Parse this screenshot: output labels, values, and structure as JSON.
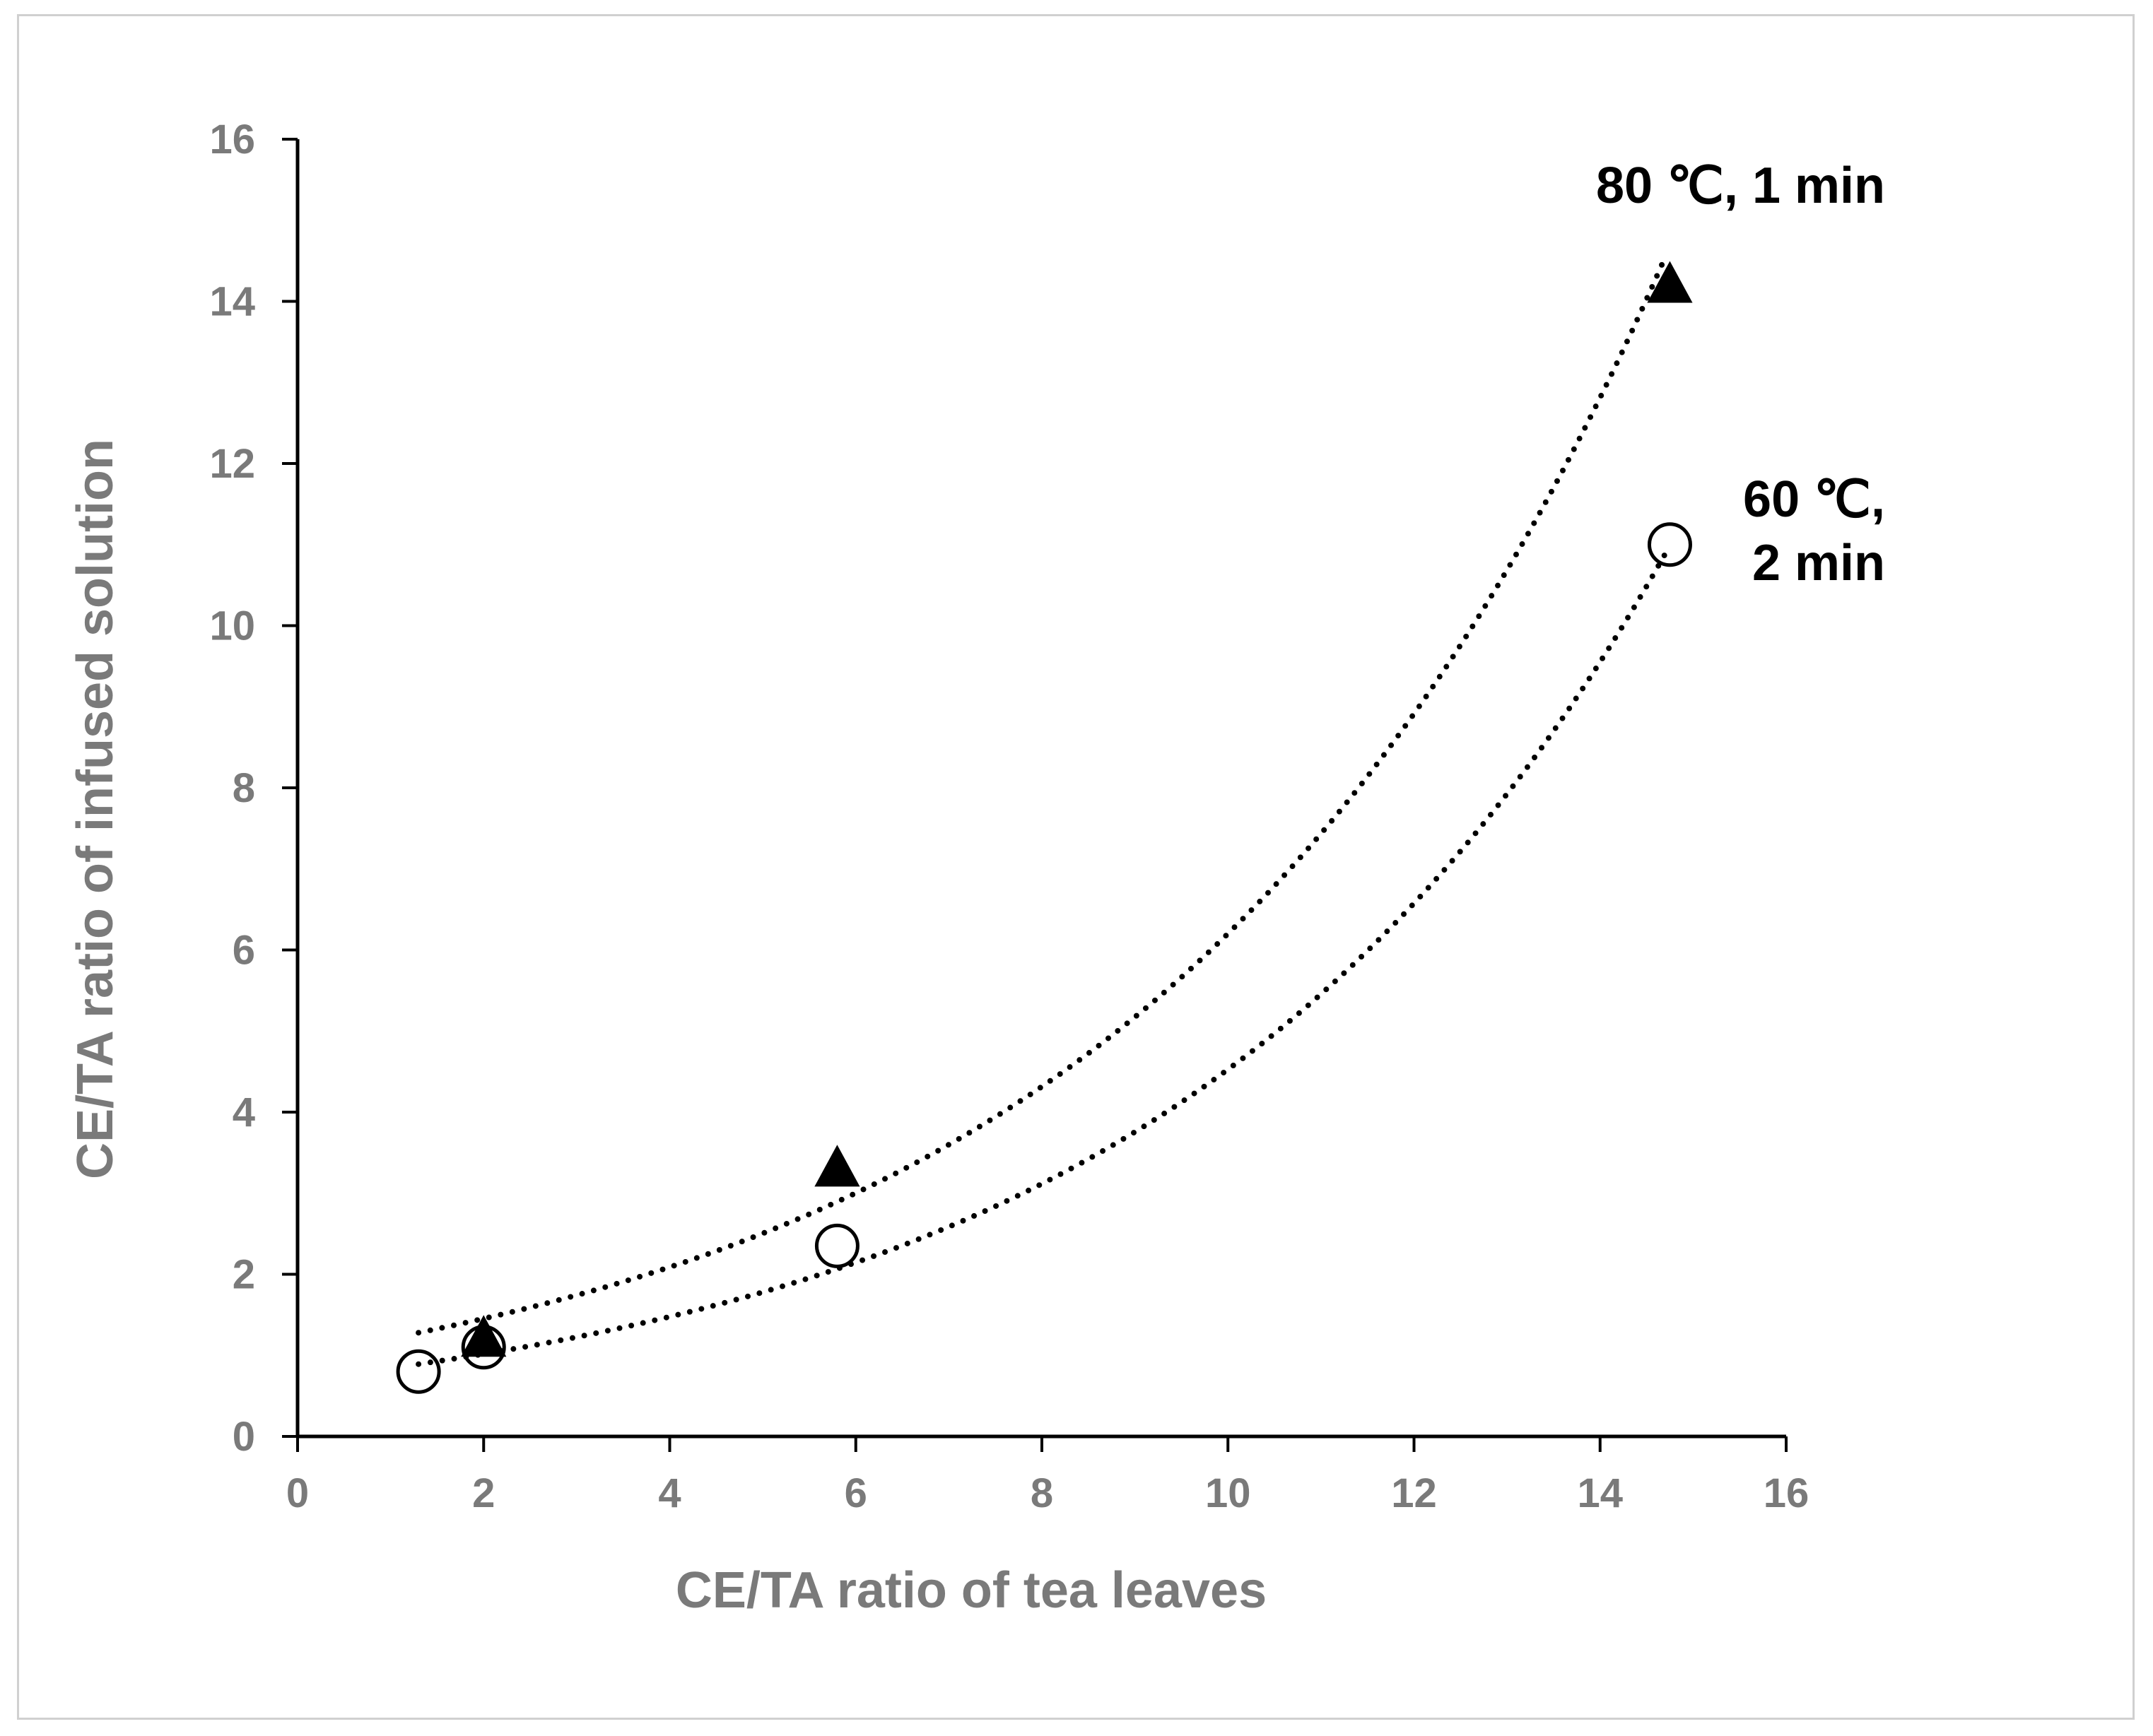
{
  "chart_data": {
    "type": "scatter",
    "title": "",
    "xlabel": "CE/TA ratio of tea leaves",
    "ylabel": "CE/TA ratio of infused solution",
    "xlim": [
      0,
      16
    ],
    "ylim": [
      0,
      16
    ],
    "xticks": [
      "0",
      "2",
      "4",
      "6",
      "8",
      "10",
      "12",
      "14",
      "16"
    ],
    "yticks": [
      "0",
      "2",
      "4",
      "6",
      "8",
      "10",
      "12",
      "14",
      "16"
    ],
    "grid": false,
    "series": [
      {
        "name": "80 ℃, 1 min",
        "marker": "filled-triangle",
        "color": "#000000",
        "x": [
          2.0,
          5.8,
          14.75
        ],
        "y": [
          1.2,
          3.3,
          14.2
        ],
        "trendline": {
          "type": "exponential",
          "style": "dotted",
          "x_range": [
            1.3,
            14.7
          ],
          "a": 1.0108,
          "b": 0.1814
        }
      },
      {
        "name": "60 ℃, 2 min",
        "marker": "open-circle",
        "color": "#000000",
        "x": [
          1.3,
          2.0,
          5.8,
          14.75
        ],
        "y": [
          0.8,
          1.1,
          2.35,
          11.0
        ],
        "trendline": {
          "type": "exponential",
          "style": "dotted",
          "x_range": [
            1.3,
            14.7
          ],
          "a": 0.6997,
          "b": 0.1867
        }
      }
    ],
    "annotations": [
      {
        "lines": [
          "80 ℃, 1 min"
        ],
        "near_series": "80 ℃, 1 min",
        "placement": "above end of curve"
      },
      {
        "lines": [
          "60 ℃,",
          "2 min"
        ],
        "near_series": "60 ℃, 2 min",
        "placement": "right of end of curve"
      }
    ]
  }
}
